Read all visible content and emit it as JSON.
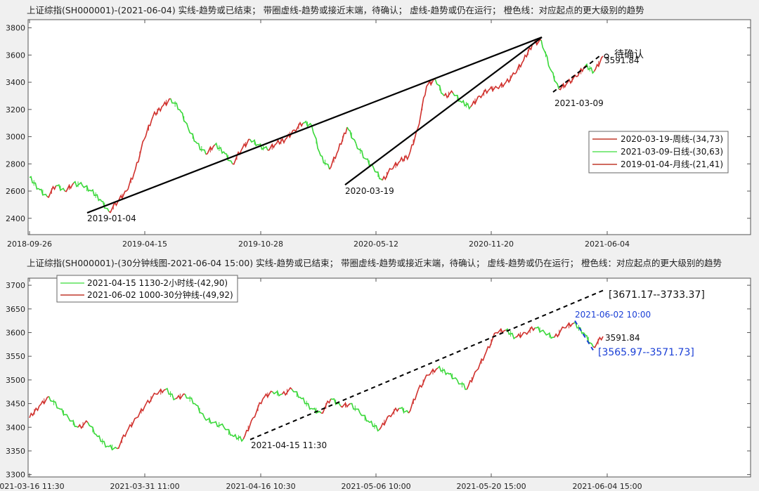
{
  "chart_data": [
    {
      "type": "line",
      "title": "上证综指(SH000001)-(2021-06-04)  实线-趋势或已结束；  带圈虚线-趋势或接近末端，待确认；  虚线-趋势或仍在运行；  橙色线：对应起点的更大级别的趋势",
      "x_ticks": [
        "2018-09-26",
        "2019-04-15",
        "2019-10-28",
        "2020-05-12",
        "2020-11-20",
        "2021-06-04"
      ],
      "y_ticks": [
        2400,
        2600,
        2800,
        3000,
        3200,
        3400,
        3600,
        3800
      ],
      "ylim": [
        2280,
        3860
      ],
      "legend": [
        {
          "label": "2020-03-19-周线-(34,73)",
          "color": "#c0392b"
        },
        {
          "label": "2021-03-09-日线-(30,63)",
          "color": "#5be35b"
        },
        {
          "label": "2019-01-04-月线-(21,41)",
          "color": "#c0392b"
        }
      ],
      "annotations": {
        "start_2019": "2019-01-04",
        "start_2020": "2020-03-19",
        "start_2021": "2021-03-09",
        "last_price": "3591.84",
        "pending": "待确认"
      },
      "series": [
        {
          "values": [
            2700,
            2620,
            2560,
            2640,
            2600,
            2660,
            2640,
            2600,
            2540,
            2450,
            2520,
            2600,
            2760,
            2980,
            3150,
            3220,
            3280,
            3200,
            3060,
            2950,
            2870,
            2940,
            2890,
            2800,
            2900,
            2980,
            2940,
            2900,
            2950,
            2980,
            3050,
            3100,
            3080,
            2860,
            2760,
            2900,
            3070,
            2950,
            2840,
            2770,
            2680,
            2760,
            2820,
            2860,
            3060,
            3370,
            3420,
            3300,
            3320,
            3250,
            3220,
            3300,
            3340,
            3360,
            3400,
            3460,
            3560,
            3680,
            3710,
            3500,
            3350,
            3400,
            3440,
            3520,
            3480,
            3591.84
          ]
        }
      ],
      "trend_lines": [
        {
          "from": [
            "2019-01-04",
            2440
          ],
          "to": [
            "2021-02-18",
            3731
          ]
        },
        {
          "from": [
            "2020-03-19",
            2646
          ],
          "to": [
            "2021-02-18",
            3731
          ]
        },
        {
          "from": [
            "2021-03-09",
            3328
          ],
          "to": [
            "2021-06-02",
            3600
          ],
          "dashed": true
        }
      ]
    },
    {
      "type": "line",
      "title": "上证综指(SH000001)-(30分钟线图-2021-06-04 15:00)  实线-趋势或已结束；  带圈虚线-趋势或接近末端，待确认；  虚线-趋势或仍在运行；  橙色线：对应起点的更大级别的趋势",
      "x_ticks": [
        "2021-03-16 11:30",
        "2021-03-31 11:00",
        "2021-04-16 10:30",
        "2021-05-06 10:00",
        "2021-05-20 15:00",
        "2021-06-04 15:00"
      ],
      "y_ticks": [
        3300,
        3350,
        3400,
        3450,
        3500,
        3550,
        3600,
        3650,
        3700
      ],
      "ylim": [
        3295,
        3715
      ],
      "legend": [
        {
          "label": "2021-04-15 1130-2小时线-(42,90)",
          "color": "#5be35b"
        },
        {
          "label": "2021-06-02 1000-30分钟线-(49,92)",
          "color": "#c0392b"
        }
      ],
      "annotations": {
        "start_point": "2021-04-15 11:30",
        "target_range": "[3671.17--3733.37]",
        "pivot_time": "2021-06-02 10:00",
        "pivot_range": "[3565.97--3571.73]",
        "last_price": "3591.84"
      },
      "series": [
        {
          "values": [
            3420,
            3445,
            3465,
            3440,
            3420,
            3400,
            3410,
            3380,
            3360,
            3355,
            3390,
            3420,
            3450,
            3470,
            3480,
            3460,
            3470,
            3450,
            3420,
            3410,
            3400,
            3380,
            3375,
            3420,
            3460,
            3475,
            3470,
            3480,
            3460,
            3440,
            3430,
            3460,
            3445,
            3450,
            3430,
            3410,
            3395,
            3425,
            3440,
            3430,
            3480,
            3510,
            3525,
            3515,
            3500,
            3480,
            3520,
            3560,
            3600,
            3605,
            3590,
            3600,
            3610,
            3600,
            3590,
            3610,
            3620,
            3600,
            3570,
            3591.84
          ]
        }
      ],
      "trend_lines": [
        {
          "from": [
            "2021-04-15 11:30",
            3374
          ],
          "to": [
            "2021-06-04 15:00",
            3689
          ],
          "dashed": true
        },
        {
          "from": [
            "2021-06-02 10:00",
            3625
          ],
          "to": [
            "2021-06-03 14:00",
            3563
          ],
          "dashed": true,
          "color": "#1a3fd6"
        }
      ]
    }
  ]
}
